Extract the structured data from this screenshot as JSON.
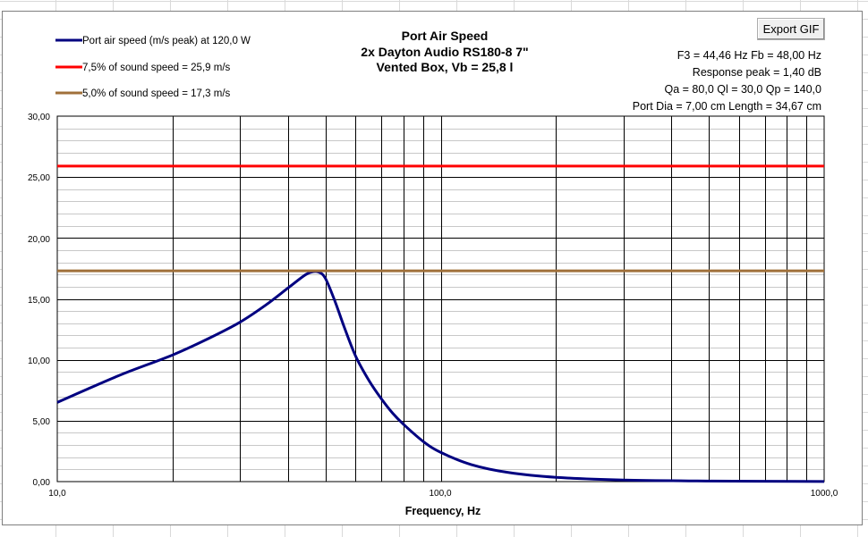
{
  "window": {
    "export_button_label": "Export GIF"
  },
  "chart_data": {
    "type": "line",
    "title_lines": [
      "Port Air Speed",
      "2x Dayton Audio RS180-8 7\"",
      "Vented Box, Vb = 25,8 l"
    ],
    "info_lines": [
      "F3 = 44,46 Hz  Fb = 48,00 Hz",
      "Response peak = 1,40 dB",
      "Qa = 80,0  Ql = 30,0  Qp = 140,0",
      "Port Dia = 7,00 cm  Length = 34,67 cm"
    ],
    "xlabel": "Frequency, Hz",
    "ylabel": "",
    "x_scale": "log",
    "xlim": [
      10,
      1000
    ],
    "ylim": [
      0,
      30
    ],
    "grid": true,
    "legend_position": "top-left",
    "x_tick_labels": [
      "10,0",
      "100,0",
      "1000,0"
    ],
    "y_tick_labels": [
      "0,00",
      "5,00",
      "10,00",
      "15,00",
      "20,00",
      "25,00",
      "30,00"
    ],
    "series": [
      {
        "name": "Port air speed (m/s peak) at 120,0 W",
        "color": "#000080",
        "x": [
          10,
          12,
          15,
          20,
          25,
          30,
          35,
          40,
          44,
          46,
          48,
          50,
          53,
          56,
          60,
          65,
          70,
          75,
          80,
          90,
          100,
          120,
          150,
          200,
          300,
          500,
          1000
        ],
        "y": [
          6.5,
          7.6,
          8.9,
          10.4,
          11.8,
          13.1,
          14.5,
          15.9,
          16.9,
          17.2,
          17.2,
          16.7,
          14.8,
          12.7,
          10.3,
          8.3,
          6.8,
          5.6,
          4.7,
          3.3,
          2.4,
          1.4,
          0.75,
          0.35,
          0.13,
          0.05,
          0.01
        ]
      },
      {
        "name": "7,5% of sound speed = 25,9 m/s",
        "color": "#ff0000",
        "x": [
          10,
          1000
        ],
        "y": [
          25.9,
          25.9
        ]
      },
      {
        "name": "5,0% of sound speed = 17,3 m/s",
        "color": "#a0703a",
        "x": [
          10,
          1000
        ],
        "y": [
          17.3,
          17.3
        ]
      }
    ]
  }
}
